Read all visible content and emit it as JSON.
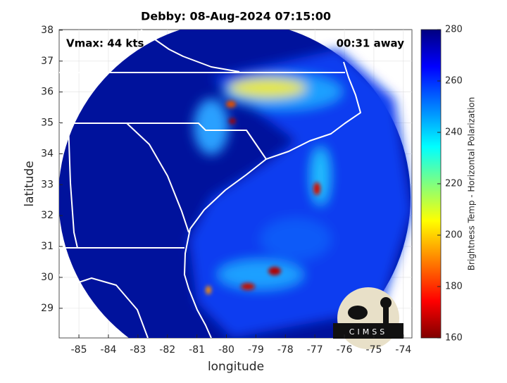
{
  "title": "Debby: 08-Aug-2024 07:15:00",
  "annotations": {
    "vmax": "Vmax: 44 kts",
    "time_away": "00:31 away"
  },
  "map": {
    "xlabel": "longitude",
    "ylabel": "latitude",
    "xlim": [
      -85.67,
      -73.71
    ],
    "ylim": [
      28.04,
      38.02
    ],
    "xticks": [
      -85,
      -84,
      -83,
      -82,
      -81,
      -80,
      -79,
      -78,
      -77,
      -76,
      -75,
      -74
    ],
    "yticks": [
      29,
      30,
      31,
      32,
      33,
      34,
      35,
      36,
      37,
      38
    ]
  },
  "colorbar": {
    "label": "Brightness Temp - Horizontal Polarization",
    "lim": [
      160,
      280
    ],
    "ticks": [
      160,
      180,
      200,
      220,
      240,
      260,
      280
    ]
  },
  "logo": "CIMSS"
}
